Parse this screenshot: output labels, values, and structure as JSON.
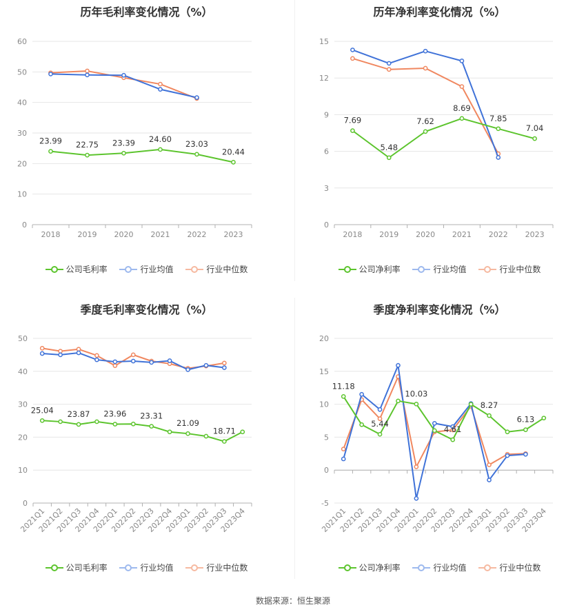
{
  "colors": {
    "company": "#5cc42d",
    "avg": "#3f72d8",
    "median": "#f0875f",
    "grid": "#e6e6e6",
    "axis": "#b0b0b0"
  },
  "legend_gross": [
    "公司毛利率",
    "行业均值",
    "行业中位数"
  ],
  "legend_net": [
    "公司净利率",
    "行业均值",
    "行业中位数"
  ],
  "source_text": "数据来源：恒生聚源",
  "chart_data": [
    {
      "type": "line",
      "title": "历年毛利率变化情况（%）",
      "categories": [
        "2018",
        "2019",
        "2020",
        "2021",
        "2022",
        "2023"
      ],
      "ylim": [
        0,
        60
      ],
      "yticks": [
        0,
        10,
        20,
        30,
        40,
        50,
        60
      ],
      "xlabel_rotate": false,
      "series": [
        {
          "name": "公司毛利率",
          "values": [
            23.99,
            22.75,
            23.39,
            24.6,
            23.03,
            20.44
          ],
          "labels": [
            "23.99",
            "22.75",
            "23.39",
            "24.60",
            "23.03",
            "20.44"
          ]
        },
        {
          "name": "行业均值",
          "values": [
            49.3,
            49.0,
            48.9,
            44.3,
            41.6,
            null
          ]
        },
        {
          "name": "行业中位数",
          "values": [
            49.7,
            50.3,
            48.1,
            46.0,
            41.3,
            null
          ]
        }
      ]
    },
    {
      "type": "line",
      "title": "历年净利率变化情况（%）",
      "categories": [
        "2018",
        "2019",
        "2020",
        "2021",
        "2022",
        "2023"
      ],
      "ylim": [
        0,
        15
      ],
      "yticks": [
        0,
        3,
        6,
        9,
        12,
        15
      ],
      "xlabel_rotate": false,
      "series": [
        {
          "name": "公司净利率",
          "values": [
            7.69,
            5.48,
            7.62,
            8.69,
            7.85,
            7.04
          ],
          "labels": [
            "7.69",
            "5.48",
            "7.62",
            "8.69",
            "7.85",
            "7.04"
          ]
        },
        {
          "name": "行业均值",
          "values": [
            14.3,
            13.2,
            14.2,
            13.4,
            5.5,
            null
          ]
        },
        {
          "name": "行业中位数",
          "values": [
            13.6,
            12.7,
            12.8,
            11.3,
            5.8,
            null
          ]
        }
      ]
    },
    {
      "type": "line",
      "title": "季度毛利率变化情况（%）",
      "categories": [
        "2021Q1",
        "2021Q2",
        "2021Q3",
        "2021Q4",
        "2022Q1",
        "2022Q2",
        "2022Q3",
        "2022Q4",
        "2023Q1",
        "2023Q2",
        "2023Q3",
        "2023Q4"
      ],
      "ylim": [
        0,
        50
      ],
      "yticks": [
        0,
        10,
        20,
        30,
        40,
        50
      ],
      "xlabel_rotate": true,
      "series": [
        {
          "name": "公司毛利率",
          "values": [
            25.04,
            24.7,
            23.87,
            24.7,
            23.96,
            24.0,
            23.31,
            21.6,
            21.09,
            20.3,
            18.71,
            21.6
          ],
          "labels": [
            "25.04",
            "",
            "23.87",
            "",
            "23.96",
            "",
            "23.31",
            "",
            "21.09",
            "",
            "18.71",
            ""
          ]
        },
        {
          "name": "行业均值",
          "values": [
            45.4,
            45.0,
            45.6,
            43.5,
            42.9,
            43.1,
            42.7,
            43.2,
            40.5,
            41.8,
            41.1,
            null
          ]
        },
        {
          "name": "行业中位数",
          "values": [
            47.0,
            46.1,
            46.7,
            44.8,
            41.7,
            45.0,
            43.1,
            42.3,
            40.9,
            41.6,
            42.5,
            null
          ]
        }
      ]
    },
    {
      "type": "line",
      "title": "季度净利率变化情况（%）",
      "categories": [
        "2021Q1",
        "2021Q2",
        "2021Q3",
        "2021Q4",
        "2022Q1",
        "2022Q2",
        "2022Q3",
        "2022Q4",
        "2023Q1",
        "2023Q2",
        "2023Q3",
        "2023Q4"
      ],
      "ylim": [
        -5,
        20
      ],
      "yticks": [
        -5,
        0,
        5,
        10,
        15,
        20
      ],
      "xlabel_rotate": true,
      "series": [
        {
          "name": "公司净利率",
          "values": [
            11.18,
            6.9,
            5.44,
            10.5,
            10.03,
            6.0,
            4.61,
            10.0,
            8.27,
            5.8,
            6.13,
            7.9
          ],
          "labels": [
            "11.18",
            "",
            "5.44",
            "",
            "10.03",
            "",
            "4.61",
            "",
            "8.27",
            "",
            "6.13",
            ""
          ]
        },
        {
          "name": "行业均值",
          "values": [
            1.7,
            11.5,
            9.2,
            15.9,
            -4.3,
            7.1,
            6.6,
            10.1,
            -1.5,
            2.2,
            2.4,
            null
          ]
        },
        {
          "name": "行业中位数",
          "values": [
            3.2,
            10.7,
            7.8,
            14.2,
            0.5,
            5.8,
            6.1,
            9.7,
            0.8,
            2.4,
            2.5,
            null
          ]
        }
      ]
    }
  ]
}
